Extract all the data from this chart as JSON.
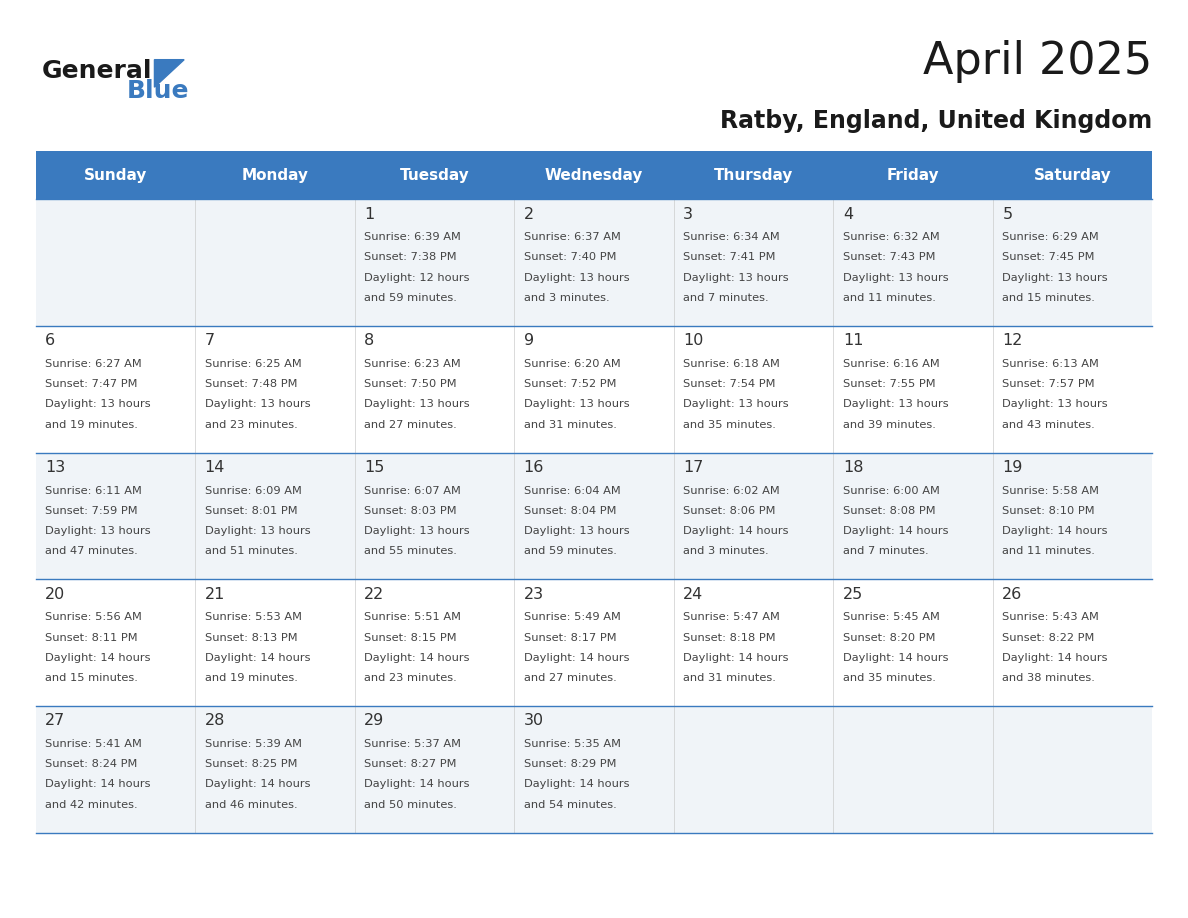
{
  "title": "April 2025",
  "subtitle": "Ratby, England, United Kingdom",
  "header_bg": "#3a7abf",
  "header_text": "#ffffff",
  "day_names": [
    "Sunday",
    "Monday",
    "Tuesday",
    "Wednesday",
    "Thursday",
    "Friday",
    "Saturday"
  ],
  "alt_row_bg": "#f0f4f8",
  "white_row_bg": "#ffffff",
  "border_color": "#3a7abf",
  "text_color": "#333333",
  "num_color": "#333333",
  "days": [
    {
      "date": 1,
      "col": 2,
      "row": 0,
      "sunrise": "6:39 AM",
      "sunset": "7:38 PM",
      "daylight": "12 hours and 59 minutes."
    },
    {
      "date": 2,
      "col": 3,
      "row": 0,
      "sunrise": "6:37 AM",
      "sunset": "7:40 PM",
      "daylight": "13 hours and 3 minutes."
    },
    {
      "date": 3,
      "col": 4,
      "row": 0,
      "sunrise": "6:34 AM",
      "sunset": "7:41 PM",
      "daylight": "13 hours and 7 minutes."
    },
    {
      "date": 4,
      "col": 5,
      "row": 0,
      "sunrise": "6:32 AM",
      "sunset": "7:43 PM",
      "daylight": "13 hours and 11 minutes."
    },
    {
      "date": 5,
      "col": 6,
      "row": 0,
      "sunrise": "6:29 AM",
      "sunset": "7:45 PM",
      "daylight": "13 hours and 15 minutes."
    },
    {
      "date": 6,
      "col": 0,
      "row": 1,
      "sunrise": "6:27 AM",
      "sunset": "7:47 PM",
      "daylight": "13 hours and 19 minutes."
    },
    {
      "date": 7,
      "col": 1,
      "row": 1,
      "sunrise": "6:25 AM",
      "sunset": "7:48 PM",
      "daylight": "13 hours and 23 minutes."
    },
    {
      "date": 8,
      "col": 2,
      "row": 1,
      "sunrise": "6:23 AM",
      "sunset": "7:50 PM",
      "daylight": "13 hours and 27 minutes."
    },
    {
      "date": 9,
      "col": 3,
      "row": 1,
      "sunrise": "6:20 AM",
      "sunset": "7:52 PM",
      "daylight": "13 hours and 31 minutes."
    },
    {
      "date": 10,
      "col": 4,
      "row": 1,
      "sunrise": "6:18 AM",
      "sunset": "7:54 PM",
      "daylight": "13 hours and 35 minutes."
    },
    {
      "date": 11,
      "col": 5,
      "row": 1,
      "sunrise": "6:16 AM",
      "sunset": "7:55 PM",
      "daylight": "13 hours and 39 minutes."
    },
    {
      "date": 12,
      "col": 6,
      "row": 1,
      "sunrise": "6:13 AM",
      "sunset": "7:57 PM",
      "daylight": "13 hours and 43 minutes."
    },
    {
      "date": 13,
      "col": 0,
      "row": 2,
      "sunrise": "6:11 AM",
      "sunset": "7:59 PM",
      "daylight": "13 hours and 47 minutes."
    },
    {
      "date": 14,
      "col": 1,
      "row": 2,
      "sunrise": "6:09 AM",
      "sunset": "8:01 PM",
      "daylight": "13 hours and 51 minutes."
    },
    {
      "date": 15,
      "col": 2,
      "row": 2,
      "sunrise": "6:07 AM",
      "sunset": "8:03 PM",
      "daylight": "13 hours and 55 minutes."
    },
    {
      "date": 16,
      "col": 3,
      "row": 2,
      "sunrise": "6:04 AM",
      "sunset": "8:04 PM",
      "daylight": "13 hours and 59 minutes."
    },
    {
      "date": 17,
      "col": 4,
      "row": 2,
      "sunrise": "6:02 AM",
      "sunset": "8:06 PM",
      "daylight": "14 hours and 3 minutes."
    },
    {
      "date": 18,
      "col": 5,
      "row": 2,
      "sunrise": "6:00 AM",
      "sunset": "8:08 PM",
      "daylight": "14 hours and 7 minutes."
    },
    {
      "date": 19,
      "col": 6,
      "row": 2,
      "sunrise": "5:58 AM",
      "sunset": "8:10 PM",
      "daylight": "14 hours and 11 minutes."
    },
    {
      "date": 20,
      "col": 0,
      "row": 3,
      "sunrise": "5:56 AM",
      "sunset": "8:11 PM",
      "daylight": "14 hours and 15 minutes."
    },
    {
      "date": 21,
      "col": 1,
      "row": 3,
      "sunrise": "5:53 AM",
      "sunset": "8:13 PM",
      "daylight": "14 hours and 19 minutes."
    },
    {
      "date": 22,
      "col": 2,
      "row": 3,
      "sunrise": "5:51 AM",
      "sunset": "8:15 PM",
      "daylight": "14 hours and 23 minutes."
    },
    {
      "date": 23,
      "col": 3,
      "row": 3,
      "sunrise": "5:49 AM",
      "sunset": "8:17 PM",
      "daylight": "14 hours and 27 minutes."
    },
    {
      "date": 24,
      "col": 4,
      "row": 3,
      "sunrise": "5:47 AM",
      "sunset": "8:18 PM",
      "daylight": "14 hours and 31 minutes."
    },
    {
      "date": 25,
      "col": 5,
      "row": 3,
      "sunrise": "5:45 AM",
      "sunset": "8:20 PM",
      "daylight": "14 hours and 35 minutes."
    },
    {
      "date": 26,
      "col": 6,
      "row": 3,
      "sunrise": "5:43 AM",
      "sunset": "8:22 PM",
      "daylight": "14 hours and 38 minutes."
    },
    {
      "date": 27,
      "col": 0,
      "row": 4,
      "sunrise": "5:41 AM",
      "sunset": "8:24 PM",
      "daylight": "14 hours and 42 minutes."
    },
    {
      "date": 28,
      "col": 1,
      "row": 4,
      "sunrise": "5:39 AM",
      "sunset": "8:25 PM",
      "daylight": "14 hours and 46 minutes."
    },
    {
      "date": 29,
      "col": 2,
      "row": 4,
      "sunrise": "5:37 AM",
      "sunset": "8:27 PM",
      "daylight": "14 hours and 50 minutes."
    },
    {
      "date": 30,
      "col": 3,
      "row": 4,
      "sunrise": "5:35 AM",
      "sunset": "8:29 PM",
      "daylight": "14 hours and 54 minutes."
    }
  ],
  "logo_text_general": "General",
  "logo_text_blue": "Blue",
  "logo_color_general": "#1a1a1a",
  "logo_color_blue": "#3a7abf",
  "logo_triangle_color": "#3a7abf"
}
